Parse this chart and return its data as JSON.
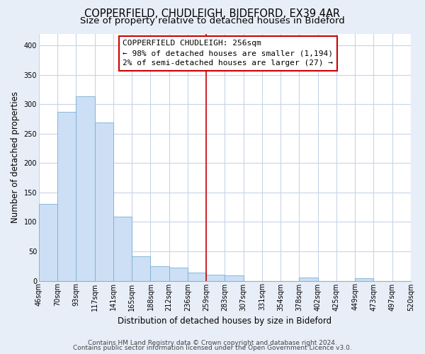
{
  "title": "COPPERFIELD, CHUDLEIGH, BIDEFORD, EX39 4AR",
  "subtitle": "Size of property relative to detached houses in Bideford",
  "xlabel": "Distribution of detached houses by size in Bideford",
  "ylabel": "Number of detached properties",
  "bin_labels": [
    "46sqm",
    "70sqm",
    "93sqm",
    "117sqm",
    "141sqm",
    "165sqm",
    "188sqm",
    "212sqm",
    "236sqm",
    "259sqm",
    "283sqm",
    "307sqm",
    "331sqm",
    "354sqm",
    "378sqm",
    "402sqm",
    "425sqm",
    "449sqm",
    "473sqm",
    "497sqm",
    "520sqm"
  ],
  "bar_heights": [
    130,
    287,
    313,
    269,
    109,
    41,
    25,
    22,
    14,
    10,
    9,
    0,
    0,
    0,
    5,
    0,
    0,
    4,
    0,
    0
  ],
  "bar_color": "#ccdff5",
  "bar_edge_color": "#7aafd4",
  "marker_line_color": "#cc0000",
  "annotation_line1": "COPPERFIELD CHUDLEIGH: 256sqm",
  "annotation_line2": "← 98% of detached houses are smaller (1,194)",
  "annotation_line3": "2% of semi-detached houses are larger (27) →",
  "ylim": [
    0,
    420
  ],
  "yticks": [
    0,
    50,
    100,
    150,
    200,
    250,
    300,
    350,
    400
  ],
  "footer1": "Contains HM Land Registry data © Crown copyright and database right 2024.",
  "footer2": "Contains public sector information licensed under the Open Government Licence v3.0.",
  "fig_bg_color": "#e8eef8",
  "plot_bg_color": "#ffffff",
  "grid_color": "#c8d4e8",
  "title_fontsize": 10.5,
  "subtitle_fontsize": 9.5,
  "axis_label_fontsize": 8.5,
  "tick_fontsize": 7,
  "annotation_fontsize": 8,
  "footer_fontsize": 6.5
}
